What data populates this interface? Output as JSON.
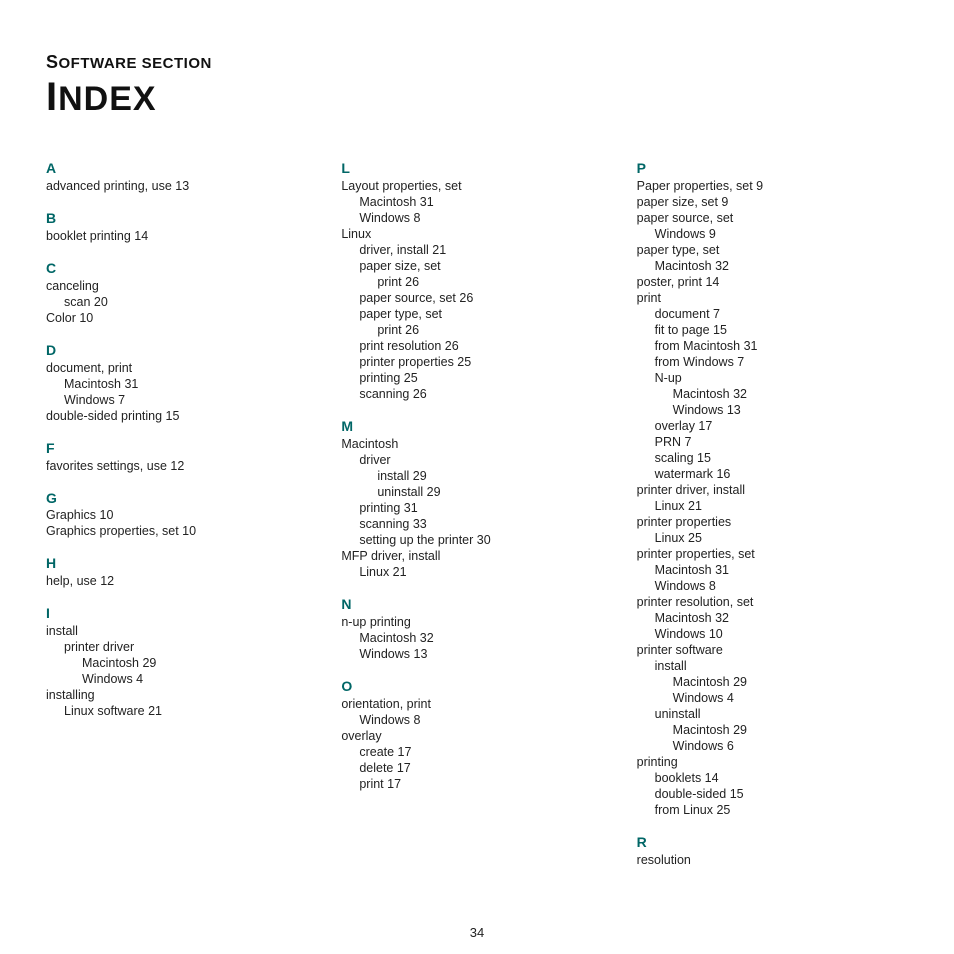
{
  "colors": {
    "heading": "#006666",
    "text": "#222222",
    "background": "#ffffff"
  },
  "kicker": {
    "first": "S",
    "rest": "OFTWARE SECTION"
  },
  "title": {
    "first": "I",
    "rest": "NDEX"
  },
  "pageNumber": "34",
  "col1": {
    "A": {
      "letter": "A"
    },
    "A_e1": "advanced printing, use 13",
    "B": {
      "letter": "B"
    },
    "B_e1": "booklet printing 14",
    "C": {
      "letter": "C"
    },
    "C_e1": "canceling",
    "C_e1a": "scan 20",
    "C_e2": "Color 10",
    "D": {
      "letter": "D"
    },
    "D_e1": "document, print",
    "D_e1a": "Macintosh 31",
    "D_e1b": "Windows 7",
    "D_e2": "double-sided printing 15",
    "F": {
      "letter": "F"
    },
    "F_e1": "favorites settings, use 12",
    "G": {
      "letter": "G"
    },
    "G_e1": "Graphics 10",
    "G_e2": "Graphics properties, set 10",
    "H": {
      "letter": "H"
    },
    "H_e1": "help, use 12",
    "I": {
      "letter": "I"
    },
    "I_e1": "install",
    "I_e1a": "printer driver",
    "I_e1a1": "Macintosh 29",
    "I_e1a2": "Windows 4",
    "I_e2": "installing",
    "I_e2a": "Linux software 21"
  },
  "col2": {
    "L": {
      "letter": "L"
    },
    "L_e1": "Layout properties, set",
    "L_e1a": "Macintosh 31",
    "L_e1b": "Windows 8",
    "L_e2": "Linux",
    "L_e2a": "driver, install 21",
    "L_e2b": "paper size, set",
    "L_e2b1": "print 26",
    "L_e2c": "paper source, set 26",
    "L_e2d": "paper type, set",
    "L_e2d1": "print 26",
    "L_e2e": "print resolution 26",
    "L_e2f": "printer properties 25",
    "L_e2g": "printing 25",
    "L_e2h": "scanning 26",
    "M": {
      "letter": "M"
    },
    "M_e1": "Macintosh",
    "M_e1a": "driver",
    "M_e1a1": "install 29",
    "M_e1a2": "uninstall 29",
    "M_e1b": "printing 31",
    "M_e1c": "scanning 33",
    "M_e1d": "setting up the printer 30",
    "M_e2": "MFP driver, install",
    "M_e2a": "Linux 21",
    "N": {
      "letter": "N"
    },
    "N_e1": "n-up printing",
    "N_e1a": "Macintosh 32",
    "N_e1b": "Windows 13",
    "O": {
      "letter": "O"
    },
    "O_e1": "orientation, print",
    "O_e1a": "Windows 8",
    "O_e2": "overlay",
    "O_e2a": "create 17",
    "O_e2b": "delete 17",
    "O_e2c": "print 17"
  },
  "col3": {
    "P": {
      "letter": "P"
    },
    "P_e1": "Paper properties, set 9",
    "P_e2": "paper size, set 9",
    "P_e3": "paper source, set",
    "P_e3a": "Windows 9",
    "P_e4": "paper type, set",
    "P_e4a": "Macintosh 32",
    "P_e5": "poster, print 14",
    "P_e6": "print",
    "P_e6a": "document 7",
    "P_e6b": "fit to page 15",
    "P_e6c": "from Macintosh 31",
    "P_e6d": "from Windows 7",
    "P_e6e": "N-up",
    "P_e6e1": "Macintosh 32",
    "P_e6e2": "Windows 13",
    "P_e6f": "overlay 17",
    "P_e6g": "PRN 7",
    "P_e6h": "scaling 15",
    "P_e6i": "watermark 16",
    "P_e7": "printer driver, install",
    "P_e7a": "Linux 21",
    "P_e8": "printer properties",
    "P_e8a": "Linux 25",
    "P_e9": "printer properties, set",
    "P_e9a": "Macintosh 31",
    "P_e9b": "Windows 8",
    "P_e10": "printer resolution, set",
    "P_e10a": "Macintosh 32",
    "P_e10b": "Windows 10",
    "P_e11": "printer software",
    "P_e11a": "install",
    "P_e11a1": "Macintosh 29",
    "P_e11a2": "Windows 4",
    "P_e11b": "uninstall",
    "P_e11b1": "Macintosh 29",
    "P_e11b2": "Windows 6",
    "P_e12": "printing",
    "P_e12a": "booklets 14",
    "P_e12b": "double-sided 15",
    "P_e12c": "from Linux 25",
    "R": {
      "letter": "R"
    },
    "R_e1": "resolution"
  }
}
